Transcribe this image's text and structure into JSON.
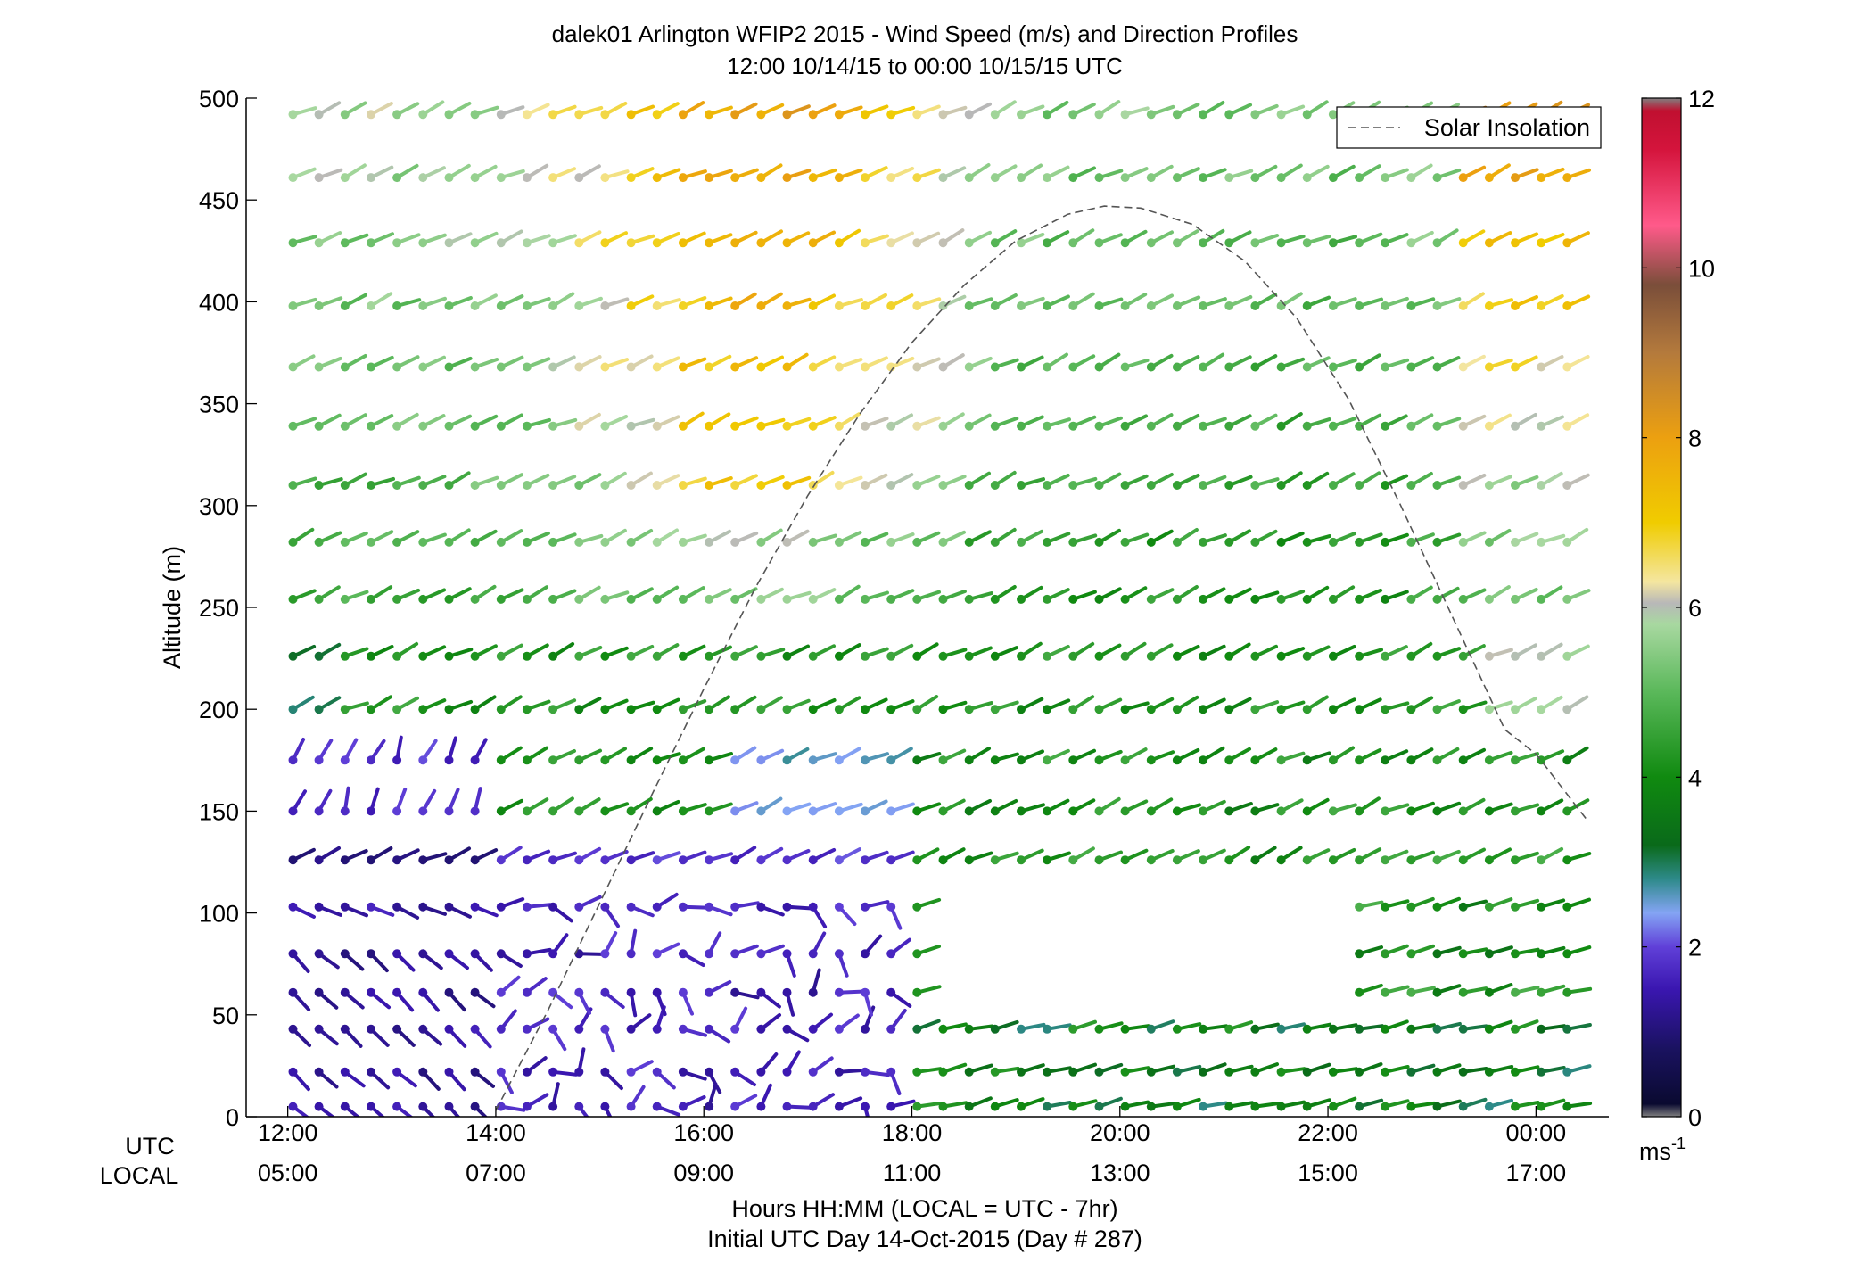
{
  "chart_data": {
    "type": "wind-barb-profile",
    "title_lines": [
      "dalek01 Arlington WFIP2 2015 - Wind Speed (m/s) and Direction Profiles",
      "12:00 10/14/15 to 00:00 10/15/15  UTC"
    ],
    "ylabel": "Altitude (m)",
    "ylim": [
      0,
      500
    ],
    "yticks": [
      0,
      50,
      100,
      150,
      200,
      250,
      300,
      350,
      400,
      450,
      500
    ],
    "x_range_hours": [
      11.6,
      24.7
    ],
    "x_utc_label": "UTC",
    "x_local_label": "LOCAL",
    "x_ticks": [
      {
        "utc": "12:00",
        "local": "05:00",
        "hour": 12
      },
      {
        "utc": "14:00",
        "local": "07:00",
        "hour": 14
      },
      {
        "utc": "16:00",
        "local": "09:00",
        "hour": 16
      },
      {
        "utc": "18:00",
        "local": "11:00",
        "hour": 18
      },
      {
        "utc": "20:00",
        "local": "13:00",
        "hour": 20
      },
      {
        "utc": "22:00",
        "local": "15:00",
        "hour": 22
      },
      {
        "utc": "00:00",
        "local": "17:00",
        "hour": 24
      }
    ],
    "xlabel_lines": [
      "Hours HH:MM  (LOCAL = UTC - 7hr)",
      "Initial UTC Day 14-Oct-2015 (Day # 287)"
    ],
    "legend": {
      "label": "Solar Insolation",
      "placement": "top-right",
      "style": "dashed",
      "color": "#555555"
    },
    "colorbar": {
      "min": 0,
      "max": 12,
      "ticks": [
        0,
        2,
        4,
        6,
        8,
        10,
        12
      ],
      "unit": "ms",
      "unit_exp": "-1",
      "stops": [
        {
          "v": 0.0,
          "c": "#808080"
        },
        {
          "v": 0.15,
          "c": "#0a0a30"
        },
        {
          "v": 0.8,
          "c": "#1a1260"
        },
        {
          "v": 1.5,
          "c": "#3a16b0"
        },
        {
          "v": 2.0,
          "c": "#6040d8"
        },
        {
          "v": 2.4,
          "c": "#84a4f4"
        },
        {
          "v": 2.8,
          "c": "#2e8a8a"
        },
        {
          "v": 3.2,
          "c": "#0a6a1a"
        },
        {
          "v": 4.0,
          "c": "#108a10"
        },
        {
          "v": 5.0,
          "c": "#5ab85a"
        },
        {
          "v": 5.8,
          "c": "#a8d8a0"
        },
        {
          "v": 6.05,
          "c": "#b8b8b8"
        },
        {
          "v": 6.3,
          "c": "#f4e6a0"
        },
        {
          "v": 7.0,
          "c": "#f0cc00"
        },
        {
          "v": 8.0,
          "c": "#eca010"
        },
        {
          "v": 9.0,
          "c": "#b47a3c"
        },
        {
          "v": 9.8,
          "c": "#7a4e3a"
        },
        {
          "v": 10.5,
          "c": "#ff5a8a"
        },
        {
          "v": 11.4,
          "c": "#d4143c"
        },
        {
          "v": 11.85,
          "c": "#c01030"
        },
        {
          "v": 12.0,
          "c": "#808080"
        }
      ]
    },
    "solar_insolation_curve": {
      "hours": [
        14.0,
        14.5,
        15.0,
        15.5,
        16.0,
        16.5,
        17.0,
        17.5,
        18.0,
        18.5,
        19.0,
        19.5,
        19.85,
        20.2,
        20.7,
        21.2,
        21.7,
        22.2,
        22.7,
        23.2,
        23.7,
        24.0,
        24.5
      ],
      "altitude": [
        3,
        52,
        105,
        158,
        210,
        260,
        305,
        345,
        380,
        408,
        430,
        443,
        447,
        446,
        438,
        420,
        392,
        352,
        300,
        245,
        190,
        178,
        145
      ]
    },
    "wind_barb_params": {
      "start_hour": 12.05,
      "end_hour": 24.35,
      "step_hours": 0.25,
      "heights": [
        5,
        22,
        43,
        61,
        80,
        103,
        126,
        150,
        175,
        200,
        226,
        254,
        282,
        310,
        339,
        368,
        398,
        429,
        461,
        492
      ],
      "gaps": [
        {
          "h_min": 50,
          "h_max": 105,
          "hour_min": 18.1,
          "hour_max": 22.2
        },
        {
          "h_min": 96,
          "h_max": 110,
          "hour_min": 18.1,
          "hour_max": 22.2
        }
      ],
      "direction_note": "sticks point toward direction wind comes from; south-west flow aloft"
    }
  }
}
